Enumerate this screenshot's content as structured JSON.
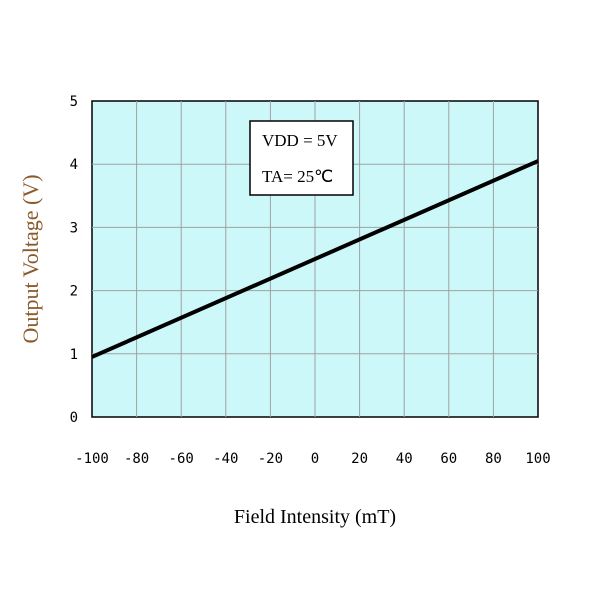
{
  "chart_data": {
    "type": "line",
    "xlabel": "Field Intensity (mT)",
    "ylabel": "Output Voltage (V)",
    "xlim": [
      -100,
      100
    ],
    "ylim": [
      0,
      5
    ],
    "x_ticks": [
      "-100",
      "-80",
      "-60",
      "-40",
      "-20",
      "0",
      "20",
      "40",
      "60",
      "80",
      "100"
    ],
    "y_ticks": [
      "0",
      "1",
      "2",
      "3",
      "4",
      "5"
    ],
    "grid": true,
    "plot_background": "#ccf8fa",
    "grid_color": "#a0a0a0",
    "line_color": "#000000",
    "series": [
      {
        "x": [
          -100,
          100
        ],
        "y": [
          0.95,
          4.05
        ]
      }
    ],
    "annotation": {
      "lines": [
        "VDD = 5V",
        "TA= 25℃"
      ]
    }
  }
}
